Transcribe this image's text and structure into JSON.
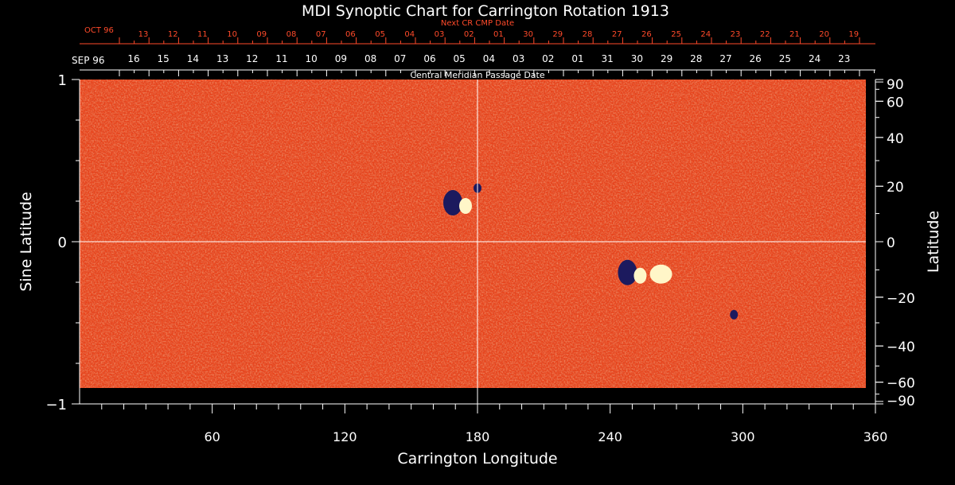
{
  "chart_data": {
    "type": "heatmap",
    "title": "MDI Synoptic Chart for Carrington Rotation 1913",
    "xlabel": "Carrington Longitude",
    "ylabel_left": "Sine Latitude",
    "ylabel_right": "Latitude",
    "xlim": [
      0,
      360
    ],
    "ylim": [
      -1,
      1
    ],
    "x_ticks": [
      "60",
      "120",
      "180",
      "240",
      "300",
      "360"
    ],
    "y_left_ticks": [
      {
        "v": 1,
        "label": "1"
      },
      {
        "v": 0,
        "label": "0"
      },
      {
        "v": -1,
        "label": "−1"
      }
    ],
    "y_right_ticks": [
      {
        "deg": 90,
        "label": "90"
      },
      {
        "deg": 60,
        "label": "60"
      },
      {
        "deg": 40,
        "label": "40"
      },
      {
        "deg": 20,
        "label": "20"
      },
      {
        "deg": 0,
        "label": "0"
      },
      {
        "deg": -20,
        "label": "−20"
      },
      {
        "deg": -40,
        "label": "−40"
      },
      {
        "deg": -60,
        "label": "−60"
      },
      {
        "deg": -90,
        "label": "−90"
      }
    ],
    "crosshair": {
      "x": 180,
      "y": 0
    },
    "active_regions": [
      {
        "lon": 250,
        "sinlat": -0.19,
        "polarity": "mixed"
      },
      {
        "lon": 263,
        "sinlat": -0.2,
        "polarity": "positive"
      },
      {
        "lon": 296,
        "sinlat": -0.45,
        "polarity": "negative"
      },
      {
        "lon": 171,
        "sinlat": 0.24,
        "polarity": "mixed"
      },
      {
        "lon": 180,
        "sinlat": 0.33,
        "polarity": "negative"
      }
    ],
    "colors": {
      "base": "#e8431b",
      "positive": "#fff6c8",
      "negative": "#1c1a5e"
    }
  },
  "top_axis": {
    "label": "Next CR CMP Date",
    "month": "OCT 96",
    "dates": [
      "13",
      "12",
      "11",
      "10",
      "09",
      "08",
      "07",
      "06",
      "05",
      "04",
      "03",
      "02",
      "01",
      "30",
      "29",
      "28",
      "27",
      "26",
      "25",
      "24",
      "23",
      "22",
      "21",
      "20",
      "19"
    ]
  },
  "mid_axis": {
    "label": "Central Meridian Passage Date",
    "month": "SEP 96",
    "dates": [
      "16",
      "15",
      "14",
      "13",
      "12",
      "11",
      "10",
      "09",
      "08",
      "07",
      "06",
      "05",
      "04",
      "03",
      "02",
      "01",
      "31",
      "30",
      "29",
      "28",
      "27",
      "26",
      "25",
      "24",
      "23"
    ]
  }
}
